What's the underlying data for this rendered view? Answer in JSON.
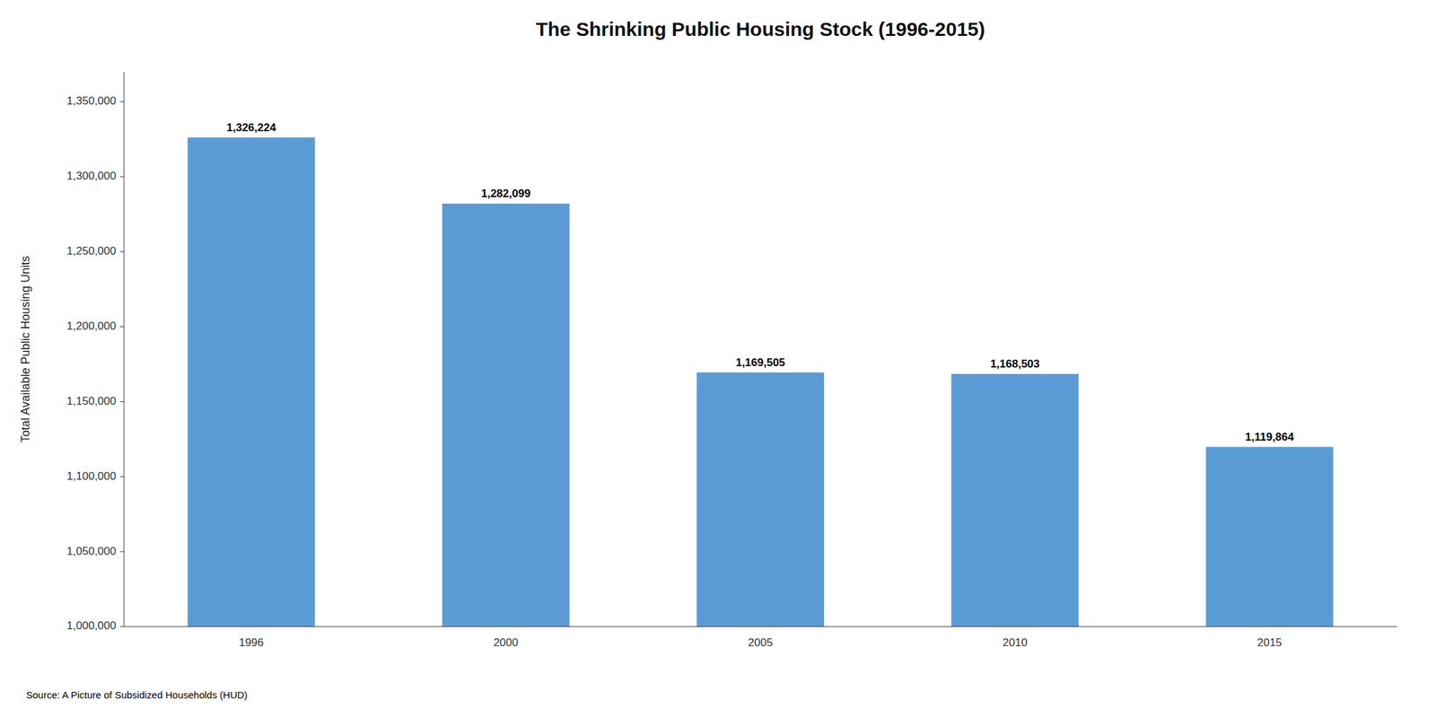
{
  "chart_data": {
    "type": "bar",
    "title": "The Shrinking Public Housing Stock (1996-2015)",
    "categories": [
      "1996",
      "2000",
      "2005",
      "2010",
      "2015"
    ],
    "values": [
      1326224,
      1282099,
      1169505,
      1168503,
      1119864
    ],
    "value_labels": [
      "1,326,224",
      "1,282,099",
      "1,169,505",
      "1,168,503",
      "1,119,864"
    ],
    "data_labels": true,
    "color": "#5b9bd5",
    "ylabel": "Total Available Public Housing Units",
    "ylim": [
      1000000,
      1370000
    ],
    "yticks": [
      {
        "value": 1000000,
        "label": "1,000,000"
      },
      {
        "value": 1050000,
        "label": "1,050,000"
      },
      {
        "value": 1100000,
        "label": "1,100,000"
      },
      {
        "value": 1150000,
        "label": "1,150,000"
      },
      {
        "value": 1200000,
        "label": "1,200,000"
      },
      {
        "value": 1250000,
        "label": "1,250,000"
      },
      {
        "value": 1300000,
        "label": "1,300,000"
      },
      {
        "value": 1350000,
        "label": "1,350,000"
      }
    ],
    "grid": false,
    "source": "Source: A Picture of Subsidized Households (HUD)"
  }
}
